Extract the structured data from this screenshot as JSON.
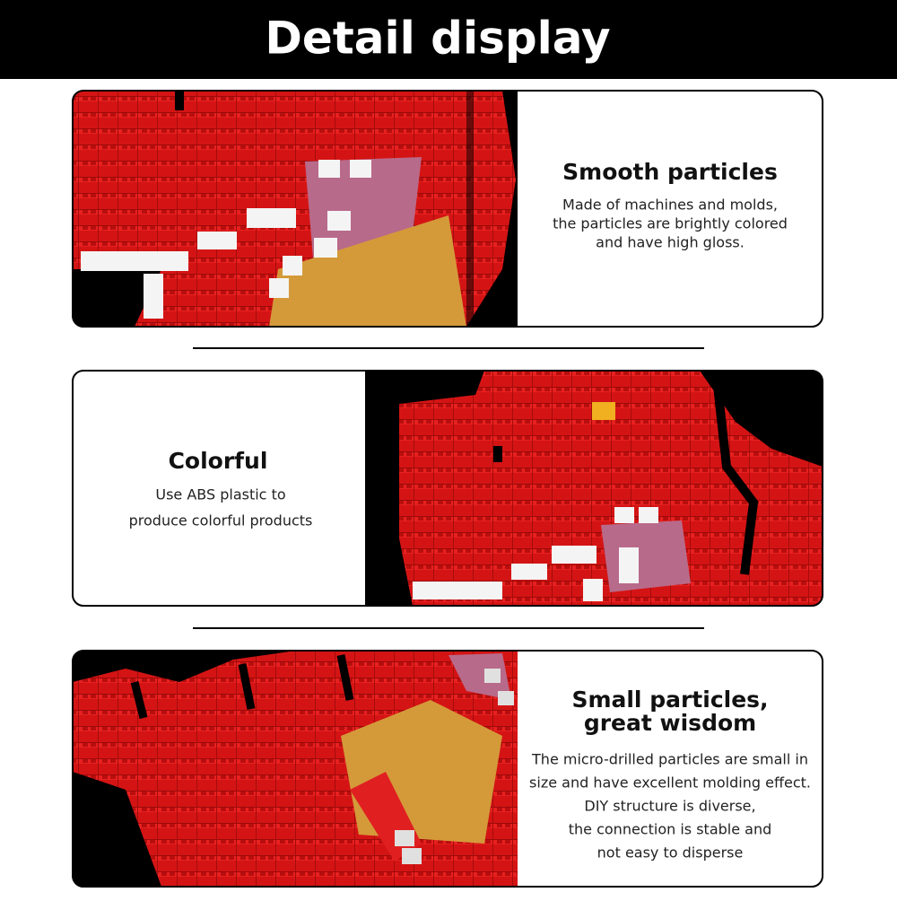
{
  "header": {
    "title": "Detail display"
  },
  "sections": [
    {
      "title": [
        "Smooth particles"
      ],
      "description": [
        "Made of machines and molds,",
        "the particles are brightly colored",
        "and have high gloss."
      ]
    },
    {
      "title": [
        "Colorful"
      ],
      "description": [
        "Use ABS plastic to",
        "produce colorful products"
      ]
    },
    {
      "title": [
        "Small particles,",
        "great wisdom"
      ],
      "description": [
        "The micro-drilled particles are small in",
        "size and have excellent molding effect.",
        "DIY structure is diverse,",
        "the connection is stable and",
        "not easy to disperse"
      ]
    }
  ]
}
